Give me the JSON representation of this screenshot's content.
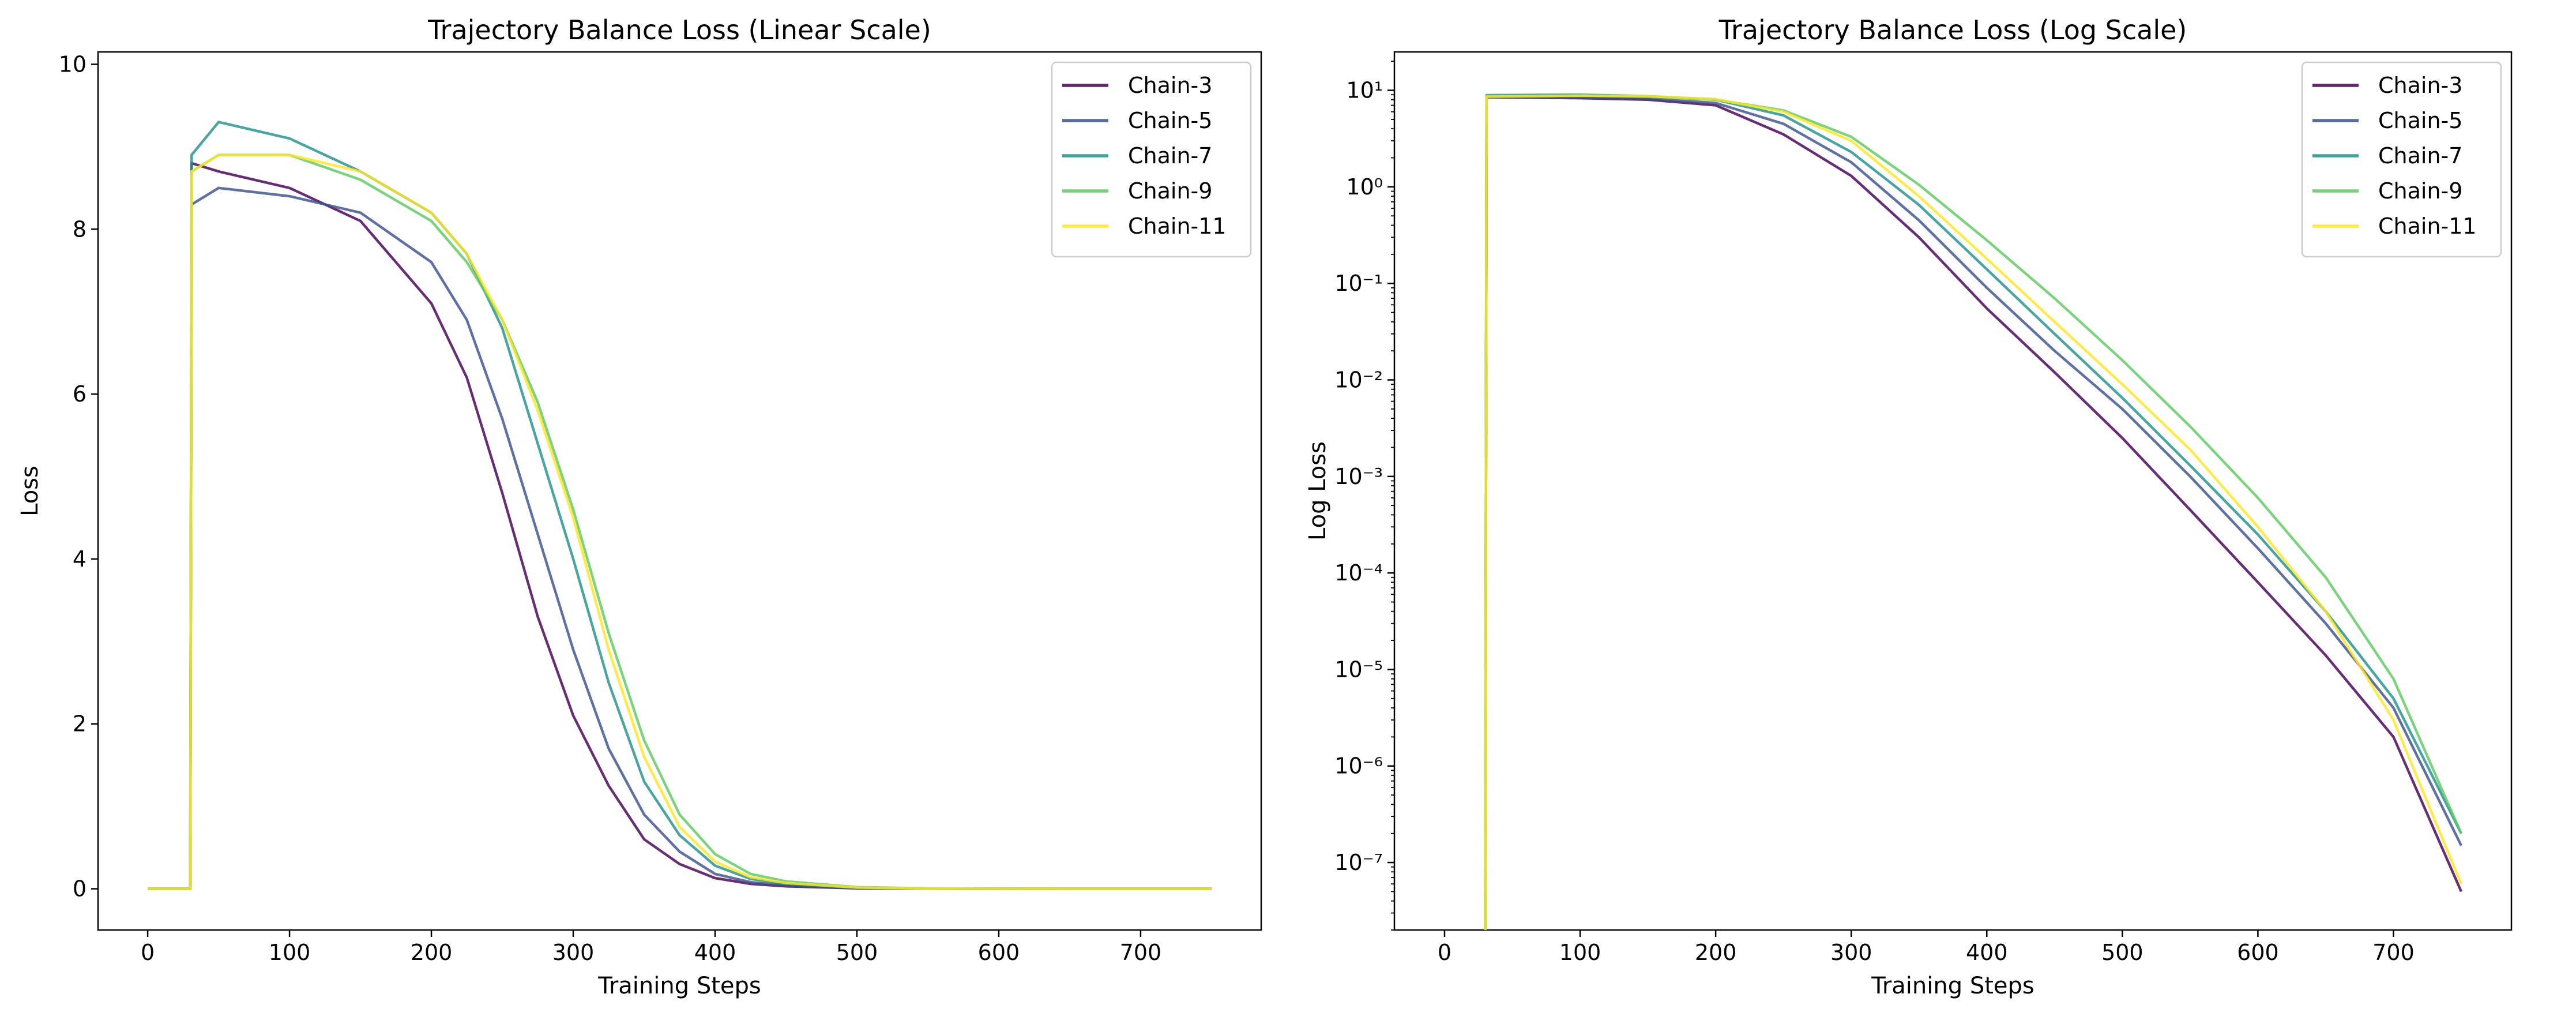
{
  "chart_data": [
    {
      "type": "line",
      "title": "Trajectory Balance Loss (Linear Scale)",
      "xlabel": "Training Steps",
      "ylabel": "Loss",
      "xlim": [
        -35,
        785
      ],
      "ylim": [
        -0.5,
        10.15
      ],
      "xticks": [
        0,
        100,
        200,
        300,
        400,
        500,
        600,
        700
      ],
      "yticks": [
        0,
        2,
        4,
        6,
        8,
        10
      ],
      "yscale": "linear",
      "grid": false,
      "legend": "top-right",
      "series": [
        {
          "name": "Chain-3",
          "color": "#440154",
          "points": [
            [
              0,
              0
            ],
            [
              30,
              0
            ],
            [
              31,
              8.8
            ],
            [
              50,
              8.7
            ],
            [
              100,
              8.5
            ],
            [
              150,
              8.1
            ],
            [
              200,
              7.1
            ],
            [
              225,
              6.2
            ],
            [
              250,
              4.8
            ],
            [
              275,
              3.3
            ],
            [
              300,
              2.1
            ],
            [
              325,
              1.25
            ],
            [
              350,
              0.6
            ],
            [
              375,
              0.3
            ],
            [
              400,
              0.13
            ],
            [
              425,
              0.06
            ],
            [
              450,
              0.03
            ],
            [
              500,
              0.006
            ],
            [
              550,
              0.001
            ],
            [
              600,
              0.0002
            ],
            [
              650,
              0
            ],
            [
              750,
              0
            ]
          ]
        },
        {
          "name": "Chain-5",
          "color": "#3b528b",
          "points": [
            [
              0,
              0
            ],
            [
              30,
              0
            ],
            [
              31,
              8.3
            ],
            [
              50,
              8.5
            ],
            [
              100,
              8.4
            ],
            [
              150,
              8.2
            ],
            [
              200,
              7.6
            ],
            [
              225,
              6.9
            ],
            [
              250,
              5.7
            ],
            [
              275,
              4.3
            ],
            [
              300,
              2.9
            ],
            [
              325,
              1.7
            ],
            [
              350,
              0.9
            ],
            [
              375,
              0.45
            ],
            [
              400,
              0.18
            ],
            [
              425,
              0.08
            ],
            [
              450,
              0.04
            ],
            [
              500,
              0.008
            ],
            [
              550,
              0.0015
            ],
            [
              600,
              0.0003
            ],
            [
              650,
              0
            ],
            [
              750,
              0
            ]
          ]
        },
        {
          "name": "Chain-7",
          "color": "#21918c",
          "points": [
            [
              0,
              0
            ],
            [
              30,
              0
            ],
            [
              31,
              8.9
            ],
            [
              50,
              9.3
            ],
            [
              100,
              9.1
            ],
            [
              150,
              8.7
            ],
            [
              200,
              8.2
            ],
            [
              225,
              7.7
            ],
            [
              250,
              6.8
            ],
            [
              275,
              5.4
            ],
            [
              300,
              4.0
            ],
            [
              325,
              2.5
            ],
            [
              350,
              1.3
            ],
            [
              375,
              0.65
            ],
            [
              400,
              0.28
            ],
            [
              425,
              0.12
            ],
            [
              450,
              0.06
            ],
            [
              500,
              0.012
            ],
            [
              550,
              0.002
            ],
            [
              600,
              0.0004
            ],
            [
              650,
              0
            ],
            [
              750,
              0
            ]
          ]
        },
        {
          "name": "Chain-9",
          "color": "#5ec962",
          "points": [
            [
              0,
              0
            ],
            [
              30,
              0
            ],
            [
              31,
              8.7
            ],
            [
              50,
              8.9
            ],
            [
              100,
              8.9
            ],
            [
              150,
              8.6
            ],
            [
              200,
              8.1
            ],
            [
              225,
              7.6
            ],
            [
              250,
              6.9
            ],
            [
              275,
              5.9
            ],
            [
              300,
              4.6
            ],
            [
              325,
              3.1
            ],
            [
              350,
              1.8
            ],
            [
              375,
              0.9
            ],
            [
              400,
              0.42
            ],
            [
              425,
              0.18
            ],
            [
              450,
              0.09
            ],
            [
              500,
              0.02
            ],
            [
              550,
              0.004
            ],
            [
              600,
              0.0008
            ],
            [
              650,
              0
            ],
            [
              750,
              0
            ]
          ]
        },
        {
          "name": "Chain-11",
          "color": "#fde725",
          "points": [
            [
              0,
              0
            ],
            [
              30,
              0
            ],
            [
              31,
              8.7
            ],
            [
              50,
              8.9
            ],
            [
              100,
              8.9
            ],
            [
              150,
              8.7
            ],
            [
              200,
              8.2
            ],
            [
              225,
              7.7
            ],
            [
              250,
              6.9
            ],
            [
              275,
              5.8
            ],
            [
              300,
              4.5
            ],
            [
              325,
              2.9
            ],
            [
              350,
              1.6
            ],
            [
              375,
              0.75
            ],
            [
              400,
              0.33
            ],
            [
              425,
              0.14
            ],
            [
              450,
              0.07
            ],
            [
              500,
              0.015
            ],
            [
              550,
              0.003
            ],
            [
              600,
              0.0006
            ],
            [
              650,
              0
            ],
            [
              750,
              0
            ]
          ]
        }
      ]
    },
    {
      "type": "line",
      "title": "Trajectory Balance Loss (Log Scale)",
      "xlabel": "Training Steps",
      "ylabel": "Log Loss",
      "xlim": [
        -37,
        787
      ],
      "ylim": [
        2e-08,
        25
      ],
      "xticks": [
        0,
        100,
        200,
        300,
        400,
        500,
        600,
        700
      ],
      "yticks": [
        1e-07,
        1e-06,
        1e-05,
        0.0001,
        0.001,
        0.01,
        0.1,
        1,
        10
      ],
      "yscale": "log",
      "grid": false,
      "legend": "top-right",
      "series": [
        {
          "name": "Chain-3",
          "color": "#440154",
          "points": [
            [
              30,
              1e-09
            ],
            [
              31,
              8.5
            ],
            [
              100,
              8.3
            ],
            [
              150,
              8.0
            ],
            [
              200,
              7.0
            ],
            [
              250,
              3.5
            ],
            [
              300,
              1.3
            ],
            [
              350,
              0.3
            ],
            [
              400,
              0.055
            ],
            [
              450,
              0.012
            ],
            [
              500,
              0.0025
            ],
            [
              550,
              0.00045
            ],
            [
              600,
              8e-05
            ],
            [
              650,
              1.4e-05
            ],
            [
              700,
              2e-06
            ],
            [
              750,
              5e-08
            ]
          ]
        },
        {
          "name": "Chain-5",
          "color": "#3b528b",
          "points": [
            [
              30,
              1e-09
            ],
            [
              31,
              8.5
            ],
            [
              100,
              8.4
            ],
            [
              150,
              8.2
            ],
            [
              200,
              7.4
            ],
            [
              250,
              4.5
            ],
            [
              300,
              1.8
            ],
            [
              350,
              0.45
            ],
            [
              400,
              0.09
            ],
            [
              450,
              0.02
            ],
            [
              500,
              0.005
            ],
            [
              550,
              0.001
            ],
            [
              600,
              0.00018
            ],
            [
              650,
              3e-05
            ],
            [
              700,
              4e-06
            ],
            [
              750,
              1.5e-07
            ]
          ]
        },
        {
          "name": "Chain-7",
          "color": "#21918c",
          "points": [
            [
              30,
              1e-09
            ],
            [
              31,
              8.9
            ],
            [
              100,
              9.0
            ],
            [
              150,
              8.7
            ],
            [
              200,
              8.0
            ],
            [
              250,
              5.5
            ],
            [
              300,
              2.3
            ],
            [
              350,
              0.65
            ],
            [
              400,
              0.14
            ],
            [
              450,
              0.03
            ],
            [
              500,
              0.0065
            ],
            [
              550,
              0.0013
            ],
            [
              600,
              0.00025
            ],
            [
              650,
              4e-05
            ],
            [
              700,
              5e-06
            ],
            [
              750,
              2e-07
            ]
          ]
        },
        {
          "name": "Chain-9",
          "color": "#5ec962",
          "points": [
            [
              30,
              1e-09
            ],
            [
              31,
              8.6
            ],
            [
              100,
              8.8
            ],
            [
              150,
              8.6
            ],
            [
              200,
              8.0
            ],
            [
              250,
              6.2
            ],
            [
              300,
              3.3
            ],
            [
              350,
              1.05
            ],
            [
              400,
              0.28
            ],
            [
              450,
              0.07
            ],
            [
              500,
              0.016
            ],
            [
              550,
              0.0033
            ],
            [
              600,
              0.0006
            ],
            [
              650,
              9e-05
            ],
            [
              700,
              8e-06
            ],
            [
              750,
              2e-07
            ]
          ]
        },
        {
          "name": "Chain-11",
          "color": "#fde725",
          "points": [
            [
              30,
              1e-09
            ],
            [
              31,
              8.6
            ],
            [
              100,
              8.8
            ],
            [
              150,
              8.7
            ],
            [
              200,
              8.1
            ],
            [
              250,
              6.0
            ],
            [
              300,
              3.0
            ],
            [
              350,
              0.8
            ],
            [
              400,
              0.18
            ],
            [
              450,
              0.04
            ],
            [
              500,
              0.009
            ],
            [
              550,
              0.0019
            ],
            [
              600,
              0.0003
            ],
            [
              650,
              4e-05
            ],
            [
              700,
              3e-06
            ],
            [
              750,
              6e-08
            ]
          ]
        }
      ]
    }
  ]
}
